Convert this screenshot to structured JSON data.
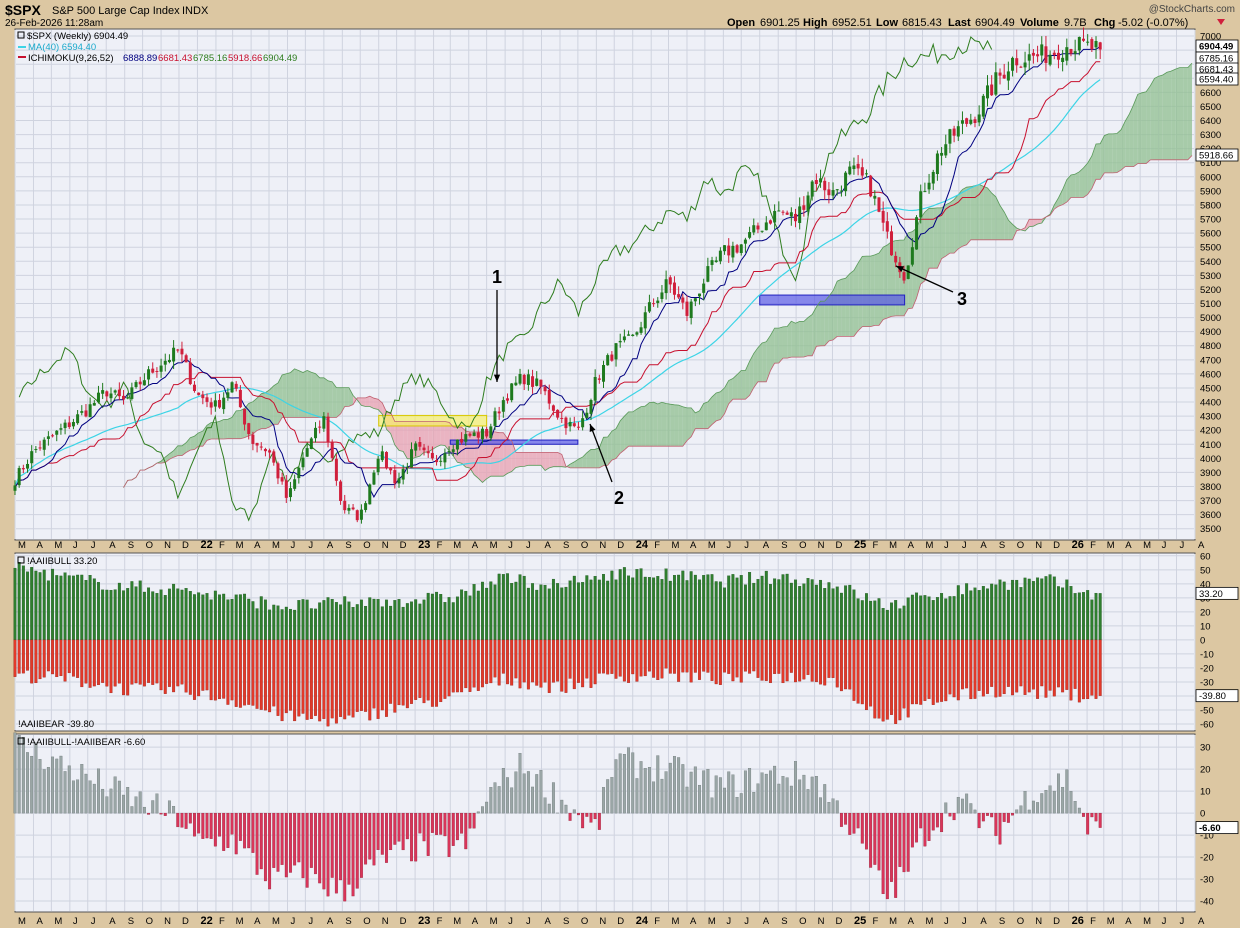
{
  "header": {
    "symbol": "$SPX",
    "name": "S&P 500 Large Cap Index",
    "exchange": "INDX",
    "watermark": "@StockCharts.com",
    "date": "26-Feb-2026 11:28am",
    "open_label": "Open",
    "open": "6901.25",
    "high_label": "High",
    "high": "6952.51",
    "low_label": "Low",
    "low": "6815.43",
    "last_label": "Last",
    "last": "6904.49",
    "volume_label": "Volume",
    "volume": "9.7B",
    "chg_label": "Chg",
    "chg": "-5.02 (-0.07%)"
  },
  "legend": {
    "price": "$SPX (Weekly) 6904.49",
    "ma": "MA(40) 6594.40",
    "ichimoku_label": "ICHIMOKU(9,26,52)",
    "ichimoku_values": [
      "6888.89",
      "6681.43",
      "6785.16",
      "5918.66",
      "6904.49"
    ]
  },
  "colors": {
    "up": "#1e7a1e",
    "down": "#d01f3c",
    "ma": "#3cd4e6",
    "tenkan": "#000080",
    "kijun": "#c8102e",
    "chikou": "#2e7d1e",
    "cloud_bull": "#8fbf8f",
    "cloud_bear": "#e8a0b0",
    "bull_bar": "#2f7f2f",
    "bear_bar": "#e2392a",
    "spread_pos": "#9aa6a6",
    "spread_neg": "#d9355a",
    "panel_bg": "#eef0f7",
    "grid": "#cfd3df"
  },
  "annotations": [
    {
      "label": "1"
    },
    {
      "label": "2"
    },
    {
      "label": "3"
    }
  ],
  "x_axis": {
    "labels": [
      "M",
      "A",
      "M",
      "J",
      "J",
      "A",
      "S",
      "O",
      "N",
      "D",
      "22",
      "F",
      "M",
      "A",
      "M",
      "J",
      "J",
      "A",
      "S",
      "O",
      "N",
      "D",
      "23",
      "F",
      "M",
      "A",
      "M",
      "J",
      "J",
      "A",
      "S",
      "O",
      "N",
      "D",
      "24",
      "F",
      "M",
      "A",
      "M",
      "J",
      "J",
      "A",
      "S",
      "O",
      "N",
      "D",
      "25",
      "F",
      "M",
      "A",
      "M",
      "J",
      "J",
      "A",
      "S",
      "O",
      "N",
      "D",
      "26",
      "F",
      "M",
      "A",
      "M",
      "J",
      "J",
      "A"
    ]
  },
  "chart_data": [
    {
      "type": "candlestick",
      "title": "$SPX (Weekly)",
      "y_ticks": [
        3500,
        3600,
        3700,
        3800,
        3900,
        4000,
        4100,
        4200,
        4300,
        4400,
        4500,
        4600,
        4700,
        4800,
        4900,
        5000,
        5100,
        5200,
        5300,
        5400,
        5500,
        5600,
        5700,
        5800,
        5900,
        6000,
        6100,
        6200,
        6300,
        6400,
        6500,
        6600,
        6700,
        6800,
        6900,
        7000
      ],
      "ylim": [
        3420,
        7050
      ],
      "x_range": [
        "2021-03",
        "2026-08"
      ],
      "price_path": [
        [
          "2021-03-01",
          3850
        ],
        [
          "2021-04-01",
          4050
        ],
        [
          "2021-05-01",
          4150
        ],
        [
          "2021-06-01",
          4250
        ],
        [
          "2021-07-01",
          4350
        ],
        [
          "2021-08-01",
          4480
        ],
        [
          "2021-09-01",
          4400
        ],
        [
          "2021-10-01",
          4560
        ],
        [
          "2021-11-01",
          4680
        ],
        [
          "2021-12-01",
          4766
        ],
        [
          "2022-01-01",
          4450
        ],
        [
          "2022-02-01",
          4370
        ],
        [
          "2022-03-01",
          4530
        ],
        [
          "2022-04-01",
          4130
        ],
        [
          "2022-05-01",
          4050
        ],
        [
          "2022-06-01",
          3700
        ],
        [
          "2022-07-01",
          4050
        ],
        [
          "2022-08-01",
          4280
        ],
        [
          "2022-09-01",
          3650
        ],
        [
          "2022-10-01",
          3580
        ],
        [
          "2022-11-01",
          4050
        ],
        [
          "2022-12-01",
          3830
        ],
        [
          "2023-01-01",
          4075
        ],
        [
          "2023-02-01",
          3970
        ],
        [
          "2023-03-01",
          4100
        ],
        [
          "2023-04-01",
          4160
        ],
        [
          "2023-05-01",
          4180
        ],
        [
          "2023-06-01",
          4440
        ],
        [
          "2023-07-01",
          4580
        ],
        [
          "2023-08-01",
          4500
        ],
        [
          "2023-09-01",
          4290
        ],
        [
          "2023-10-01",
          4190
        ],
        [
          "2023-11-01",
          4560
        ],
        [
          "2023-12-01",
          4770
        ],
        [
          "2024-01-01",
          4850
        ],
        [
          "2024-02-01",
          5090
        ],
        [
          "2024-03-01",
          5250
        ],
        [
          "2024-04-01",
          5030
        ],
        [
          "2024-05-01",
          5280
        ],
        [
          "2024-06-01",
          5460
        ],
        [
          "2024-07-01",
          5520
        ],
        [
          "2024-08-01",
          5640
        ],
        [
          "2024-09-01",
          5760
        ],
        [
          "2024-10-01",
          5700
        ],
        [
          "2024-11-01",
          6000
        ],
        [
          "2024-12-01",
          5880
        ],
        [
          "2025-01-01",
          6040
        ],
        [
          "2025-02-01",
          5950
        ],
        [
          "2025-03-01",
          5580
        ],
        [
          "2025-04-01",
          5300
        ],
        [
          "2025-05-01",
          5900
        ],
        [
          "2025-06-01",
          6200
        ],
        [
          "2025-07-01",
          6340
        ],
        [
          "2025-08-01",
          6460
        ],
        [
          "2025-09-01",
          6680
        ],
        [
          "2025-10-01",
          6840
        ],
        [
          "2025-11-01",
          6850
        ],
        [
          "2025-12-01",
          6880
        ],
        [
          "2026-01-01",
          6940
        ],
        [
          "2026-02-26",
          6904.49
        ]
      ],
      "last_price": 6904.49,
      "right_labels": [
        "6904.49",
        "6785.16",
        "6681.43",
        "6594.40",
        "5918.66"
      ],
      "highlight_zones": [
        {
          "color": "yellow",
          "from": "2022-11",
          "to": "2023-05",
          "y": [
            4230,
            4305
          ]
        },
        {
          "color": "blue",
          "from": "2023-03",
          "to": "2023-10",
          "y": [
            4100,
            4130
          ]
        },
        {
          "color": "blue",
          "from": "2024-08",
          "to": "2025-04",
          "y": [
            5090,
            5160
          ]
        }
      ]
    },
    {
      "type": "bar",
      "title": "!AAIIBULL 33.20",
      "series_bull": "!AAIIBULL",
      "series_bear": "!AAIIBEAR",
      "bull_last": 33.2,
      "bear_last": -39.8,
      "bear_label": "!AAIIBEAR -39.80",
      "y_ticks": [
        60,
        50,
        40,
        30,
        20,
        10,
        0,
        -10,
        -20,
        -30,
        -40,
        -50,
        -60
      ],
      "ylim": [
        -65,
        62
      ],
      "bull_path": [
        [
          "2021-03",
          52
        ],
        [
          "2021-06",
          44
        ],
        [
          "2021-09",
          38
        ],
        [
          "2021-12",
          36
        ],
        [
          "2022-03",
          30
        ],
        [
          "2022-06",
          24
        ],
        [
          "2022-09",
          26
        ],
        [
          "2022-12",
          28
        ],
        [
          "2023-03",
          30
        ],
        [
          "2023-06",
          44
        ],
        [
          "2023-09",
          38
        ],
        [
          "2023-12",
          48
        ],
        [
          "2024-03",
          46
        ],
        [
          "2024-06",
          42
        ],
        [
          "2024-09",
          45
        ],
        [
          "2024-12",
          40
        ],
        [
          "2025-03",
          24
        ],
        [
          "2025-06",
          33
        ],
        [
          "2025-09",
          40
        ],
        [
          "2025-12",
          42
        ],
        [
          "2026-02",
          33.2
        ]
      ],
      "bear_path": [
        [
          "2021-03",
          -25
        ],
        [
          "2021-06",
          -28
        ],
        [
          "2021-09",
          -35
        ],
        [
          "2021-12",
          -36
        ],
        [
          "2022-03",
          -43
        ],
        [
          "2022-06",
          -55
        ],
        [
          "2022-09",
          -58
        ],
        [
          "2022-12",
          -48
        ],
        [
          "2023-03",
          -42
        ],
        [
          "2023-06",
          -28
        ],
        [
          "2023-09",
          -34
        ],
        [
          "2023-12",
          -26
        ],
        [
          "2024-03",
          -25
        ],
        [
          "2024-06",
          -28
        ],
        [
          "2024-09",
          -26
        ],
        [
          "2024-12",
          -28
        ],
        [
          "2025-03",
          -58
        ],
        [
          "2025-06",
          -42
        ],
        [
          "2025-09",
          -36
        ],
        [
          "2025-12",
          -38
        ],
        [
          "2026-02",
          -39.8
        ]
      ]
    },
    {
      "type": "bar",
      "title": "!AAIIBULL-!AAIIBEAR -6.60",
      "last": -6.6,
      "y_ticks": [
        30,
        20,
        10,
        0,
        -10,
        -20,
        -30,
        -40
      ],
      "ylim": [
        -45,
        36
      ],
      "spread_path": [
        [
          "2021-03",
          32
        ],
        [
          "2021-06",
          20
        ],
        [
          "2021-09",
          8
        ],
        [
          "2021-12",
          -2
        ],
        [
          "2022-01",
          -14
        ],
        [
          "2022-03",
          -12
        ],
        [
          "2022-05",
          -30
        ],
        [
          "2022-07",
          -28
        ],
        [
          "2022-09",
          -36
        ],
        [
          "2022-11",
          -22
        ],
        [
          "2023-01",
          -16
        ],
        [
          "2023-04",
          -14
        ],
        [
          "2023-05",
          8
        ],
        [
          "2023-07",
          22
        ],
        [
          "2023-09",
          6
        ],
        [
          "2023-11",
          -8
        ],
        [
          "2023-12",
          24
        ],
        [
          "2024-03",
          20
        ],
        [
          "2024-06",
          12
        ],
        [
          "2024-09",
          18
        ],
        [
          "2024-11",
          16
        ],
        [
          "2025-01",
          -6
        ],
        [
          "2025-03",
          -38
        ],
        [
          "2025-04",
          -28
        ],
        [
          "2025-05",
          -10
        ],
        [
          "2025-07",
          6
        ],
        [
          "2025-09",
          -10
        ],
        [
          "2025-11",
          10
        ],
        [
          "2026-01",
          16
        ],
        [
          "2026-02",
          -6.6
        ]
      ]
    }
  ]
}
